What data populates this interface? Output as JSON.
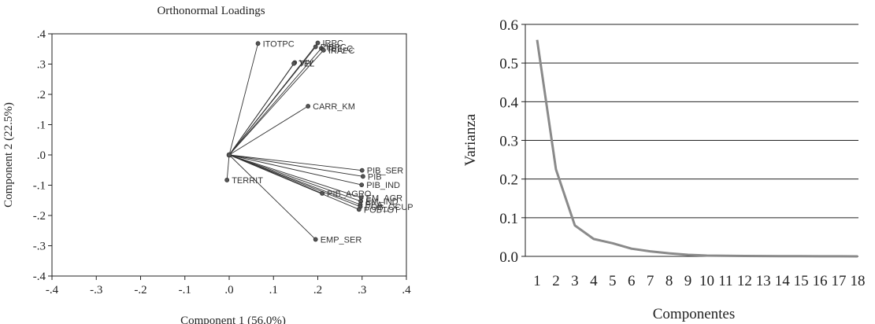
{
  "chart_data": [
    {
      "type": "scatter",
      "title": "Orthonormal Loadings",
      "xlabel": "Component 1 (56.0%)",
      "ylabel": "Component 2 (22.5%)",
      "xlim": [
        -0.4,
        0.4
      ],
      "ylim": [
        -0.4,
        0.4
      ],
      "xticks": [
        -0.4,
        -0.3,
        -0.2,
        -0.1,
        0.0,
        0.1,
        0.2,
        0.3,
        0.4
      ],
      "xtick_labels": [
        "-.4",
        "-.3",
        "-.2",
        "-.1",
        ".0",
        ".1",
        ".2",
        ".3",
        ".4"
      ],
      "yticks": [
        0.4,
        0.3,
        0.2,
        0.1,
        0.0,
        -0.1,
        -0.2,
        -0.3,
        -0.4
      ],
      "ytick_labels": [
        ".4",
        ".3",
        ".2",
        ".1",
        ".0",
        "-.1",
        "-.2",
        "-.3",
        "-.4"
      ],
      "grid": false,
      "origin": [
        0.0,
        0.0
      ],
      "points": [
        {
          "label": "ITOTPC",
          "x": 0.065,
          "y": 0.368
        },
        {
          "label": "IRPC",
          "x": 0.2,
          "y": 0.37
        },
        {
          "label": "PIBPC",
          "x": 0.195,
          "y": 0.357
        },
        {
          "label": "TEL_C",
          "x": 0.208,
          "y": 0.352
        },
        {
          "label": "IRAPC",
          "x": 0.213,
          "y": 0.346
        },
        {
          "label": "VIV",
          "x": 0.148,
          "y": 0.305
        },
        {
          "label": "TEL",
          "x": 0.146,
          "y": 0.302
        },
        {
          "label": "CARR_KM",
          "x": 0.178,
          "y": 0.161
        },
        {
          "label": "PIB_SER",
          "x": 0.3,
          "y": -0.051
        },
        {
          "label": "PIB",
          "x": 0.302,
          "y": -0.071
        },
        {
          "label": "PIB_IND",
          "x": 0.299,
          "y": -0.099
        },
        {
          "label": "PIB_AGRO",
          "x": 0.21,
          "y": -0.127
        },
        {
          "label": "EM_AGR",
          "x": 0.298,
          "y": -0.141
        },
        {
          "label": "EM_IND",
          "x": 0.297,
          "y": -0.153
        },
        {
          "label": "PEA",
          "x": 0.296,
          "y": -0.164
        },
        {
          "label": "POB_OCUP",
          "x": 0.296,
          "y": -0.171
        },
        {
          "label": "POBTOT",
          "x": 0.293,
          "y": -0.18
        },
        {
          "label": "EMP_SER",
          "x": 0.195,
          "y": -0.279
        },
        {
          "label": "TERRIT",
          "x": -0.005,
          "y": -0.083
        }
      ]
    },
    {
      "type": "line",
      "title": "",
      "xlabel": "Componentes",
      "ylabel": "Varianza",
      "x": [
        1,
        2,
        3,
        4,
        5,
        6,
        7,
        8,
        9,
        10,
        11,
        12,
        13,
        14,
        15,
        16,
        17,
        18
      ],
      "values": [
        0.56,
        0.225,
        0.08,
        0.045,
        0.034,
        0.02,
        0.013,
        0.008,
        0.004,
        0.002,
        0.0015,
        0.001,
        0.0008,
        0.0006,
        0.0004,
        0.0003,
        0.0002,
        0.0001
      ],
      "ylim": [
        0.0,
        0.6
      ],
      "yticks": [
        0.0,
        0.1,
        0.2,
        0.3,
        0.4,
        0.5,
        0.6
      ],
      "ytick_labels": [
        "0.0",
        "0.1",
        "0.2",
        "0.3",
        "0.4",
        "0.5",
        "0.6"
      ],
      "xtick_labels": [
        "1",
        "2",
        "3",
        "4",
        "5",
        "6",
        "7",
        "8",
        "9",
        "10",
        "11",
        "12",
        "13",
        "14",
        "15",
        "16",
        "17",
        "18"
      ],
      "grid": true,
      "line_color": "#8a8a8a"
    }
  ]
}
